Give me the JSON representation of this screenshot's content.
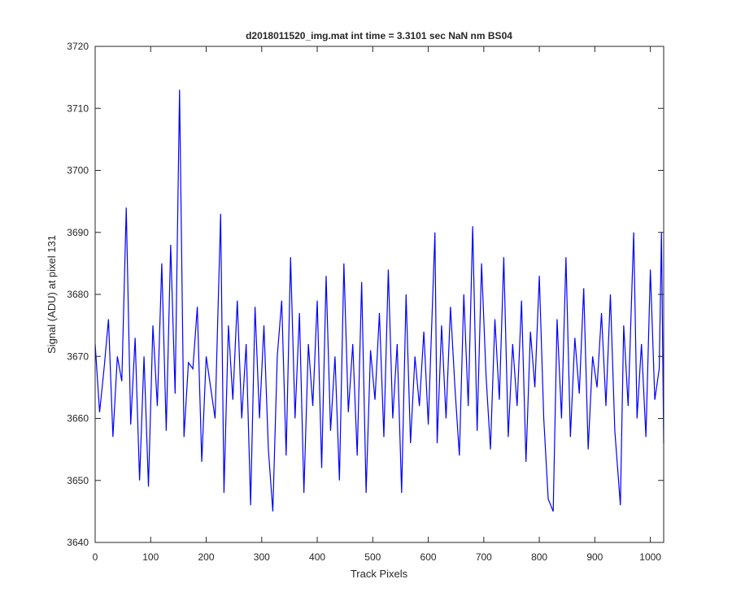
{
  "chart_data": {
    "type": "line",
    "title": "d2018011520_img.mat int time = 3.3101 sec  NaN nm BS04",
    "xlabel": "Track Pixels",
    "ylabel": "Signal (ADU) at pixel 131",
    "x": [
      0,
      8,
      16,
      24,
      32,
      40,
      48,
      56,
      64,
      72,
      80,
      88,
      96,
      104,
      112,
      120,
      128,
      136,
      144,
      152,
      160,
      168,
      176,
      184,
      192,
      200,
      208,
      216,
      226,
      232,
      240,
      248,
      256,
      264,
      272,
      280,
      288,
      296,
      304,
      312,
      320,
      328,
      336,
      344,
      352,
      360,
      368,
      376,
      384,
      392,
      400,
      408,
      416,
      424,
      432,
      440,
      448,
      456,
      464,
      472,
      480,
      488,
      496,
      504,
      512,
      520,
      528,
      536,
      544,
      552,
      560,
      568,
      576,
      584,
      592,
      600,
      612,
      616,
      624,
      632,
      640,
      648,
      656,
      664,
      672,
      680,
      688,
      696,
      704,
      712,
      720,
      728,
      736,
      744,
      752,
      760,
      768,
      776,
      784,
      792,
      800,
      808,
      816,
      825,
      832,
      840,
      848,
      856,
      864,
      872,
      880,
      888,
      896,
      904,
      912,
      920,
      928,
      936,
      946,
      952,
      960,
      970,
      976,
      984,
      992,
      1000,
      1008,
      1016,
      1020,
      1024
    ],
    "series": [
      {
        "name": "pixel 131",
        "color": "#0000ff",
        "values": [
          3672,
          3661,
          3668,
          3676,
          3657,
          3670,
          3666,
          3694,
          3659,
          3673,
          3650,
          3670,
          3649,
          3675,
          3662,
          3685,
          3658,
          3688,
          3664,
          3713,
          3657,
          3669,
          3668,
          3678,
          3653,
          3670,
          3665,
          3660,
          3693,
          3648,
          3675,
          3663,
          3679,
          3660,
          3672,
          3646,
          3678,
          3660,
          3675,
          3655,
          3645,
          3670,
          3679,
          3654,
          3686,
          3660,
          3677,
          3648,
          3672,
          3662,
          3679,
          3652,
          3683,
          3658,
          3670,
          3650,
          3685,
          3661,
          3672,
          3654,
          3682,
          3648,
          3671,
          3663,
          3677,
          3657,
          3684,
          3660,
          3672,
          3648,
          3680,
          3656,
          3670,
          3662,
          3674,
          3659,
          3690,
          3656,
          3675,
          3660,
          3678,
          3665,
          3654,
          3680,
          3662,
          3691,
          3658,
          3685,
          3667,
          3655,
          3676,
          3663,
          3686,
          3657,
          3672,
          3662,
          3679,
          3653,
          3674,
          3665,
          3683,
          3660,
          3647,
          3645,
          3676,
          3660,
          3686,
          3657,
          3673,
          3664,
          3681,
          3655,
          3670,
          3665,
          3677,
          3662,
          3680,
          3658,
          3646,
          3675,
          3662,
          3690,
          3660,
          3672,
          3657,
          3684,
          3663,
          3668,
          3690,
          3656
        ]
      }
    ],
    "xlim": [
      0,
      1024
    ],
    "ylim": [
      3640,
      3720
    ],
    "xticks": [
      0,
      100,
      200,
      300,
      400,
      500,
      600,
      700,
      800,
      900,
      1000
    ],
    "yticks": [
      3640,
      3650,
      3660,
      3670,
      3680,
      3690,
      3700,
      3710,
      3720
    ]
  }
}
